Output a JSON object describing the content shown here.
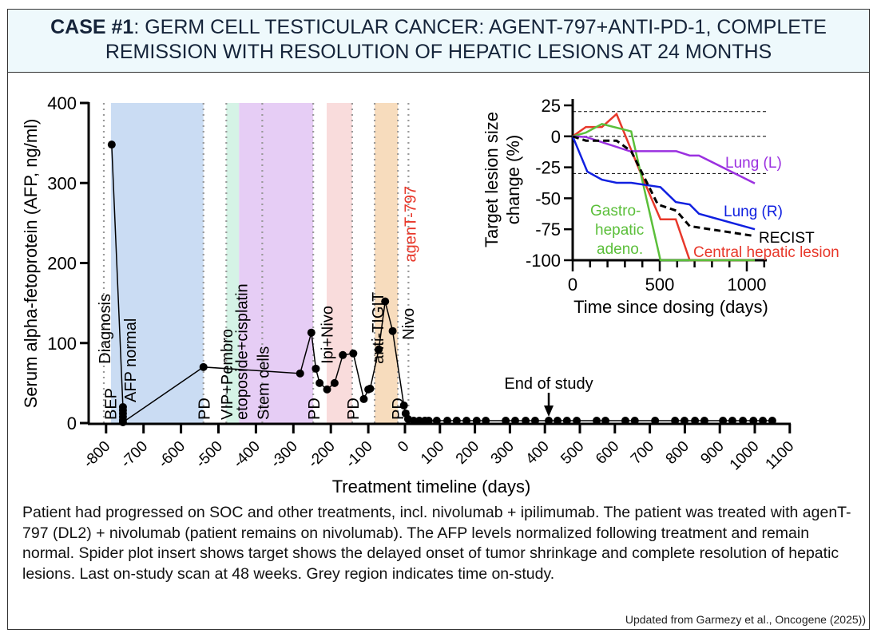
{
  "header": {
    "case_label": "CASE #1",
    "title": ": GERM CELL TESTICULAR CANCER: AGENT-797+ANTI-PD-1, COMPLETE REMISSION WITH RESOLUTION OF HEPATIC LESIONS AT 24 MONTHS"
  },
  "chart_data": [
    {
      "type": "line",
      "xlabel": "Treatment timeline (days)",
      "ylabel": "Serum alpha-fetoprotein (AFP, ng/ml)",
      "xlim": [
        -800,
        1100
      ],
      "ylim": [
        0,
        400
      ],
      "xticks": [
        "-800",
        "-700",
        "-600",
        "-500",
        "-400",
        "-300",
        "-200",
        "-100",
        "0",
        "100",
        "200",
        "300",
        "400",
        "500",
        "600",
        "700",
        "800",
        "900",
        "1000",
        "1100"
      ],
      "yticks": [
        "0",
        "100",
        "200",
        "300",
        "400"
      ],
      "points": [
        [
          -785,
          348
        ],
        [
          -755,
          20
        ],
        [
          -755,
          16
        ],
        [
          -755,
          12
        ],
        [
          -755,
          8
        ],
        [
          -755,
          4
        ],
        [
          -755,
          1
        ],
        [
          -540,
          70
        ],
        [
          -282,
          62
        ],
        [
          -252,
          113
        ],
        [
          -240,
          68
        ],
        [
          -230,
          50
        ],
        [
          -210,
          42
        ],
        [
          -190,
          50
        ],
        [
          -168,
          85
        ],
        [
          -140,
          87
        ],
        [
          -112,
          30
        ],
        [
          -100,
          42
        ],
        [
          -95,
          43
        ],
        [
          -72,
          92
        ],
        [
          -55,
          152
        ],
        [
          -35,
          115
        ],
        [
          -5,
          22
        ],
        [
          2,
          12
        ],
        [
          9,
          5
        ],
        [
          25,
          3
        ],
        [
          41,
          3
        ],
        [
          57,
          3
        ],
        [
          68,
          3
        ],
        [
          91,
          3
        ],
        [
          121,
          3
        ],
        [
          148,
          3
        ],
        [
          176,
          3
        ],
        [
          205,
          3
        ],
        [
          231,
          3
        ],
        [
          288,
          3
        ],
        [
          315,
          3
        ],
        [
          345,
          3
        ],
        [
          372,
          3
        ],
        [
          411,
          3
        ],
        [
          436,
          3
        ],
        [
          463,
          3
        ],
        [
          491,
          3
        ],
        [
          548,
          3
        ],
        [
          573,
          3
        ],
        [
          630,
          3
        ],
        [
          657,
          3
        ],
        [
          715,
          3
        ],
        [
          772,
          3
        ],
        [
          799,
          3
        ],
        [
          829,
          3
        ],
        [
          856,
          3
        ],
        [
          909,
          3
        ],
        [
          936,
          3
        ],
        [
          966,
          3
        ],
        [
          996,
          3
        ],
        [
          1023,
          3
        ],
        [
          1050,
          3
        ]
      ],
      "treatment_bands": [
        {
          "start": -787,
          "end": -540,
          "color": "#cadcf3"
        },
        {
          "start": -479,
          "end": -445,
          "color": "#d5f3e6"
        },
        {
          "start": -445,
          "end": -247,
          "color": "#e6cdf5"
        },
        {
          "start": -211,
          "end": -143,
          "color": "#f9dcdc"
        },
        {
          "start": -83,
          "end": -21,
          "color": "#f7dcbd"
        }
      ],
      "event_lines": [
        -806,
        -540,
        -479,
        -383,
        -247,
        -143,
        -83,
        -21,
        10
      ],
      "annotations": [
        {
          "text": "BEP",
          "day": -790,
          "value": 0
        },
        {
          "text": "Diagnosis",
          "day": -806,
          "value": 70
        },
        {
          "text": "AFP normal",
          "day": -738,
          "value": 22
        },
        {
          "text": "PD",
          "day": -540,
          "value": 0
        },
        {
          "text": "VIP+Pembro",
          "day": -480,
          "value": 0
        },
        {
          "text": "etoposide+cisplatin",
          "day": -440,
          "value": 0
        },
        {
          "text": "Stem cells",
          "day": -383,
          "value": 0
        },
        {
          "text": "PD",
          "day": -247,
          "value": 0
        },
        {
          "text": "Ipi+Nivo",
          "day": -212,
          "value": 70
        },
        {
          "text": "PD",
          "day": -143,
          "value": 0
        },
        {
          "text": "anti-TIGIT",
          "day": -77,
          "value": 70
        },
        {
          "text": "PD",
          "day": -23,
          "value": 0
        },
        {
          "text": "agenT-797",
          "day": 13,
          "value": 197,
          "color": "#e8382b"
        },
        {
          "text": "Nivo",
          "day": 7,
          "value": 100
        }
      ],
      "end_of_study": {
        "text": "End of study",
        "day": 411
      }
    },
    {
      "type": "line",
      "xlabel": "Time since dosing (days)",
      "ylabel": "Target lesion size change (%)",
      "xlim": [
        0,
        1100
      ],
      "ylim": [
        -100,
        25
      ],
      "xticks": [
        "0",
        "500",
        "1000"
      ],
      "yticks": [
        "25",
        "0",
        "-25",
        "-50",
        "-75",
        "-100"
      ],
      "reference_lines": [
        20,
        0,
        -30
      ],
      "series": [
        {
          "name": "Central hepatic lesion",
          "color": "#e8382b",
          "dashed": false,
          "x": [
            0,
            76,
            168,
            252,
            397,
            504,
            592,
            672,
            1046
          ],
          "y": [
            0,
            7.5,
            7.5,
            18,
            -32,
            -67,
            -67,
            -100,
            -100
          ]
        },
        {
          "name": "Gastro- hepatic adeno.",
          "color": "#5bbf3a",
          "dashed": false,
          "x": [
            0,
            76,
            168,
            336,
            504,
            1046
          ],
          "y": [
            0,
            3,
            10,
            4,
            -100,
            -100
          ]
        },
        {
          "name": "Lung (L)",
          "color": "#9b30e0",
          "dashed": false,
          "x": [
            0,
            76,
            328,
            595,
            672,
            725,
            1046
          ],
          "y": [
            0,
            -0.5,
            -12,
            -12,
            -15.5,
            -15.5,
            -38
          ]
        },
        {
          "name": "Lung (R)",
          "color": "#1020e0",
          "dashed": false,
          "x": [
            0,
            84,
            168,
            252,
            336,
            504,
            592,
            672,
            725,
            1046
          ],
          "y": [
            0,
            -28.5,
            -35,
            -37.5,
            -37.5,
            -41,
            -53,
            -55,
            -62.5,
            -75
          ]
        },
        {
          "name": "RECIST",
          "color": "#000000",
          "dashed": true,
          "x": [
            0,
            76,
            252,
            336,
            489,
            595,
            672,
            1046
          ],
          "y": [
            0,
            -3.5,
            -3.5,
            -12,
            -55,
            -60,
            -72.5,
            -80.5
          ]
        }
      ],
      "label_lines": {
        "gastro": [
          "Gastro-",
          "hepatic",
          "adeno."
        ]
      }
    }
  ],
  "caption": "Patient had progressed on SOC and other treatments, incl. nivolumab + ipilimumab. The patient was treated with agenT-797 (DL2) + nivolumab (patient remains on nivolumab). The AFP levels normalized following treatment and remain normal. Spider plot insert shows target shows the delayed onset of tumor shrinkage and complete resolution of hepatic lesions. Last on-study scan at 48 weeks. Grey region indicates time on-study.",
  "footnote": "Updated from Garmezy et al., Oncogene (2025))"
}
